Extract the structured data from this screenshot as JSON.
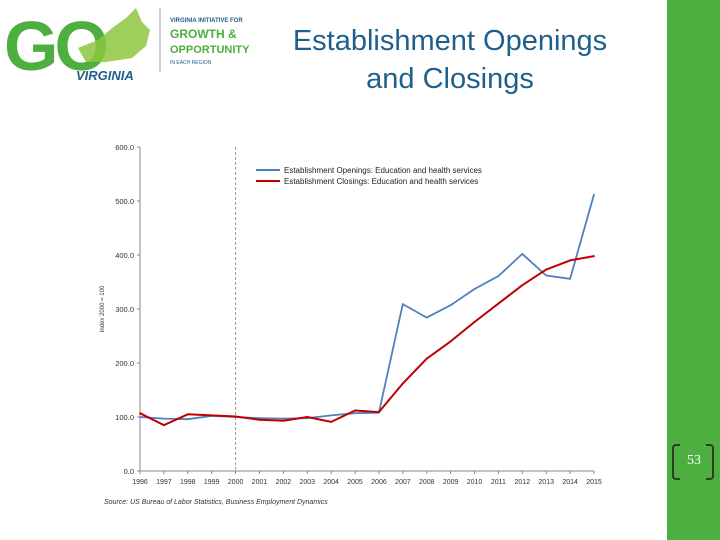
{
  "slide": {
    "title": "Establishment Openings and Closings",
    "page_number": "53"
  },
  "logo": {
    "go": "GO",
    "state": "VIRGINIA",
    "tagline_1": "VIRGINIA INITIATIVE FOR",
    "tagline_2": "GROWTH &",
    "tagline_3": "OPPORTUNITY",
    "tagline_4": "IN EACH REGION"
  },
  "colors": {
    "brand_green": "#4caf3f",
    "title_blue": "#1f5f8b",
    "openings": "#4f81bd",
    "closings": "#c00000"
  },
  "chart_data": {
    "type": "line",
    "title": "",
    "xlabel": "",
    "ylabel": "Index 2000 = 100",
    "source": "Source: US Bureau of Labor Statistics, Business Employment Dynamics",
    "ylim": [
      0,
      600
    ],
    "yticks": [
      "0.0",
      "100.0",
      "200.0",
      "300.0",
      "400.0",
      "500.0",
      "600.0"
    ],
    "categories": [
      "1996",
      "1997",
      "1998",
      "1999",
      "2000",
      "2001",
      "2002",
      "2003",
      "2004",
      "2005",
      "2006",
      "2007",
      "2008",
      "2009",
      "2010",
      "2011",
      "2012",
      "2013",
      "2014",
      "2015"
    ],
    "reference_line": "2000",
    "legend_position": "top",
    "series": [
      {
        "name": "Establishment Openings: Education and health services",
        "color": "#4f81bd",
        "values": [
          100,
          97,
          96,
          102,
          100,
          98,
          97,
          98,
          103,
          107,
          108,
          309,
          284,
          307,
          337,
          361,
          402,
          362,
          356,
          512
        ]
      },
      {
        "name": "Establishment Closings: Education and health services",
        "color": "#c00000",
        "values": [
          107,
          85,
          105,
          103,
          101,
          95,
          93,
          100,
          91,
          112,
          109,
          162,
          208,
          240,
          276,
          310,
          344,
          373,
          390,
          398
        ]
      }
    ]
  }
}
